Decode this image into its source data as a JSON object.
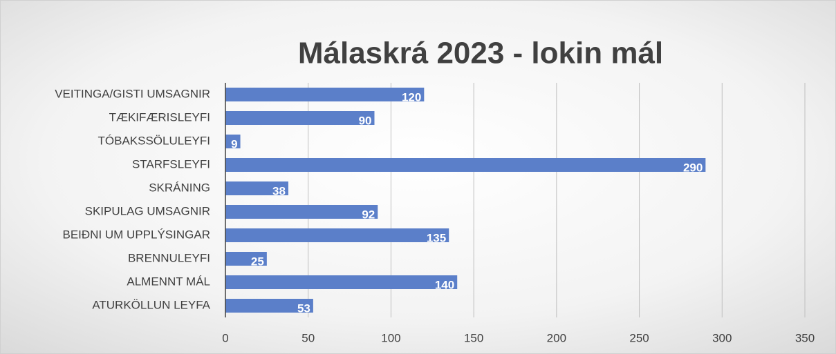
{
  "chart_data": {
    "type": "bar",
    "orientation": "horizontal",
    "title": "Málaskrá 2023 - lokin mál",
    "categories": [
      "VEITINGA/GISTI UMSAGNIR",
      "TÆKIFÆRISLEYFI",
      "TÓBAKSSÖLULEYFI",
      "STARFSLEYFI",
      "SKRÁNING",
      "SKIPULAG UMSAGNIR",
      "BEIÐNI UM UPPLÝSINGAR",
      "BRENNULEYFI",
      "ALMENNT MÁL",
      "ATURKÖLLUN LEYFA"
    ],
    "values": [
      120,
      90,
      9,
      290,
      38,
      92,
      135,
      25,
      140,
      53
    ],
    "color": "#5b7fc9",
    "xlim": [
      0,
      350
    ],
    "xticks": [
      0,
      50,
      100,
      150,
      200,
      250,
      300,
      350
    ],
    "grid": true
  }
}
